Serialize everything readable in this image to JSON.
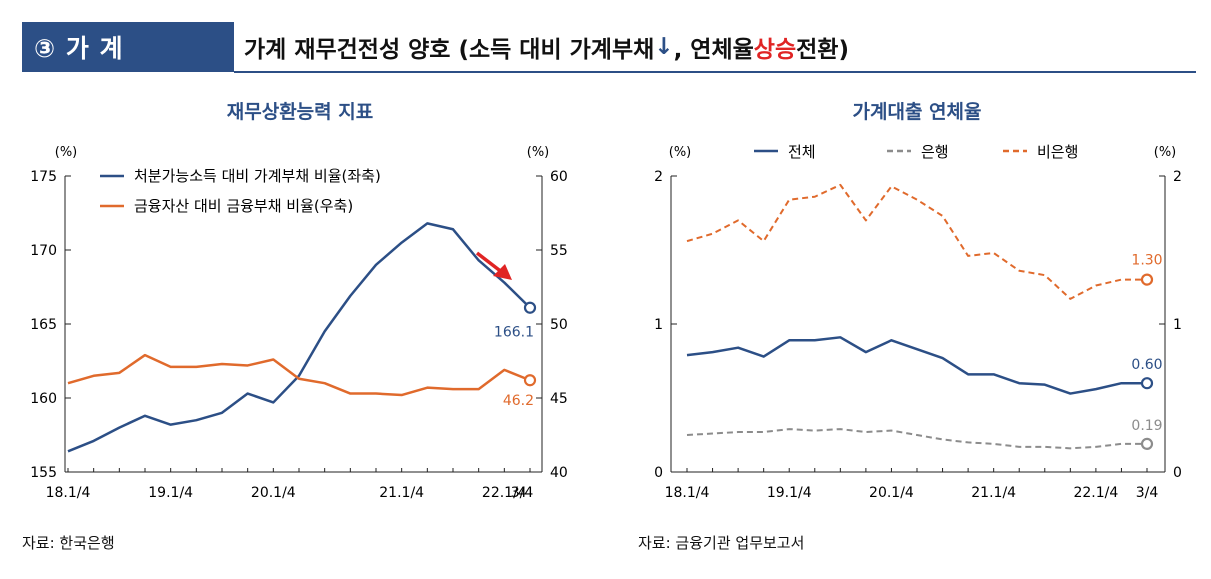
{
  "header": {
    "badge": "③ 가 계",
    "title_pre": "가계 재무건전성 양호 (소득 대비 가계부채 ",
    "title_arrow": "↓",
    "title_mid": ", 연체율 ",
    "title_hl": "상승",
    "title_post": " 전환)"
  },
  "sources": {
    "left": "자료: 한국은행",
    "right": "자료: 금융기관 업무보고서"
  },
  "colors": {
    "blue": "#2c4f86",
    "orange": "#e06a2c",
    "gray": "#8c8c8c",
    "red": "#e02424"
  },
  "chart_data": [
    {
      "type": "line",
      "title": "재무상환능력 지표",
      "left_unit": "(%)",
      "right_unit": "(%)",
      "categories": [
        "18.1/4",
        "18.2/4",
        "18.3/4",
        "18.4/4",
        "19.1/4",
        "19.2/4",
        "19.3/4",
        "19.4/4",
        "20.1/4",
        "20.2/4",
        "20.3/4",
        "20.4/4",
        "21.1/4",
        "21.2/4",
        "21.3/4",
        "21.4/4",
        "22.1/4",
        "22.2/4",
        "22.3/4",
        "3/4"
      ],
      "tick_labels": [
        "18.1/4",
        "19.1/4",
        "20.1/4",
        "21.1/4",
        "22.1/4",
        "3/4"
      ],
      "tick_index": [
        0,
        4,
        8,
        13,
        17,
        19
      ],
      "ylim_left": [
        155,
        175
      ],
      "yticks_left": [
        "155",
        "160",
        "165",
        "170",
        "175"
      ],
      "ylim_right": [
        40,
        60
      ],
      "yticks_right": [
        "40",
        "45",
        "50",
        "55",
        "60"
      ],
      "series": [
        {
          "name": "처분가능소득 대비 가계부채 비율(좌축)",
          "axis": "left",
          "values": [
            156.4,
            157.1,
            158.0,
            158.8,
            158.2,
            158.5,
            159.0,
            160.3,
            159.7,
            161.5,
            164.5,
            166.9,
            169.0,
            170.5,
            171.8,
            171.4,
            169.3,
            167.8,
            166.1,
            166.1
          ],
          "last_label": "166.1"
        },
        {
          "name": "금융자산 대비 금융부채 비율(우축)",
          "axis": "right",
          "values": [
            46.0,
            46.5,
            46.7,
            47.9,
            47.1,
            47.1,
            47.3,
            47.2,
            47.6,
            46.3,
            46.0,
            45.3,
            45.3,
            45.2,
            45.7,
            45.6,
            45.6,
            46.9,
            46.2,
            46.2
          ],
          "last_label": "46.2"
        }
      ]
    },
    {
      "type": "line",
      "title": "가계대출 연체율",
      "left_unit": "(%)",
      "right_unit": "(%)",
      "categories": [
        "18.1/4",
        "18.2/4",
        "18.3/4",
        "18.4/4",
        "19.1/4",
        "19.2/4",
        "19.3/4",
        "19.4/4",
        "20.1/4",
        "20.2/4",
        "20.3/4",
        "20.4/4",
        "21.1/4",
        "21.2/4",
        "21.3/4",
        "21.4/4",
        "22.1/4",
        "22.2/4",
        "22.3/4"
      ],
      "tick_labels": [
        "18.1/4",
        "19.1/4",
        "20.1/4",
        "21.1/4",
        "22.1/4",
        "3/4"
      ],
      "tick_index": [
        0,
        4,
        8,
        12,
        16,
        18
      ],
      "ylim": [
        0,
        2
      ],
      "yticks": [
        "0",
        "1",
        "2"
      ],
      "series": [
        {
          "name": "전체",
          "style": "solid",
          "values": [
            0.79,
            0.81,
            0.84,
            0.78,
            0.89,
            0.89,
            0.91,
            0.81,
            0.89,
            0.83,
            0.77,
            0.66,
            0.66,
            0.6,
            0.59,
            0.53,
            0.56,
            0.6,
            0.6
          ],
          "last_label": "0.60"
        },
        {
          "name": "은행",
          "style": "dashed",
          "values": [
            0.25,
            0.26,
            0.27,
            0.27,
            0.29,
            0.28,
            0.29,
            0.27,
            0.28,
            0.25,
            0.22,
            0.2,
            0.19,
            0.17,
            0.17,
            0.16,
            0.17,
            0.19,
            0.19
          ],
          "last_label": "0.19"
        },
        {
          "name": "비은행",
          "style": "dashed",
          "values": [
            1.56,
            1.61,
            1.7,
            1.56,
            1.84,
            1.86,
            1.94,
            1.7,
            1.93,
            1.84,
            1.73,
            1.46,
            1.48,
            1.36,
            1.33,
            1.17,
            1.26,
            1.3,
            1.3
          ],
          "last_label": "1.30"
        }
      ]
    }
  ]
}
